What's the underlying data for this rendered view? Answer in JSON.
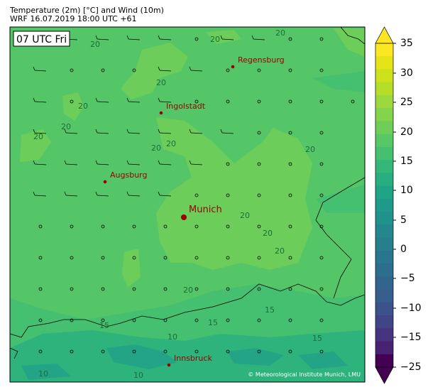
{
  "header": {
    "title": "Temperature (2m) [°C] and Wind (10m)",
    "subtitle": "WRF 16.07.2019 18:00 UTC +61"
  },
  "map": {
    "time_label": "07 UTC Fri",
    "copyright": "© Meteorological Institute Munich, LMU",
    "cities": [
      {
        "name": "Regensburg",
        "major": false
      },
      {
        "name": "Ingolstadt",
        "major": false
      },
      {
        "name": "Augsburg",
        "major": false
      },
      {
        "name": "Munich",
        "major": true
      },
      {
        "name": "Innsbruck",
        "major": false
      }
    ],
    "contour_labels": [
      "20",
      "20",
      "20",
      "20",
      "20",
      "20",
      "20",
      "20",
      "20",
      "20",
      "20",
      "20",
      "20",
      "20",
      "15",
      "15",
      "15",
      "15",
      "10",
      "10",
      "10"
    ],
    "wind_grid": [
      "wwwwwwowwoo",
      "wwooowwoooo",
      "wwowwwoooooo",
      "wwwwwwwwooo",
      "wwwwwwwoooo",
      "wwwwwwooooo",
      "ooooooooooo",
      "ooooooooooo",
      "ooooooooooo",
      "ooooooooooo",
      "ooooooooooo"
    ],
    "city_color": "#990000",
    "border_color": "#000000"
  },
  "colorbar": {
    "ticks": [
      "35",
      "30",
      "25",
      "20",
      "15",
      "10",
      "5",
      "0",
      "−5",
      "−10",
      "−15",
      "−25"
    ],
    "colors": [
      "#fde725",
      "#e5e419",
      "#cde11d",
      "#b5de2b",
      "#9bd93c",
      "#84d44b",
      "#6ece58",
      "#58c765",
      "#45bf70",
      "#35b779",
      "#28ae80",
      "#20a486",
      "#1f9a8a",
      "#21918c",
      "#24878e",
      "#277f8e",
      "#2a768e",
      "#2d6e8e",
      "#31658e",
      "#355e8d",
      "#3b528b",
      "#414487",
      "#463480",
      "#482374",
      "#440154"
    ]
  }
}
